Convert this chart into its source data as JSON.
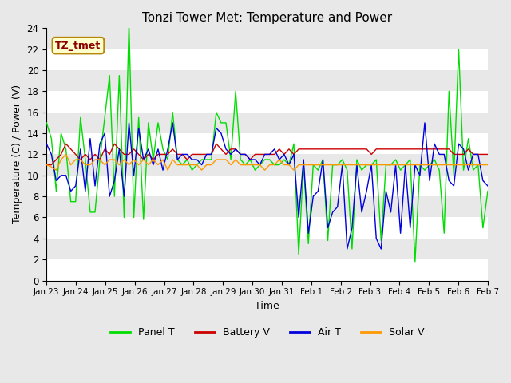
{
  "title": "Tonzi Tower Met: Temperature and Power",
  "xlabel": "Time",
  "ylabel": "Temperature (C) / Power (V)",
  "ylim": [
    0,
    24
  ],
  "yticks": [
    0,
    2,
    4,
    6,
    8,
    10,
    12,
    14,
    16,
    18,
    20,
    22,
    24
  ],
  "bg_light": "#e8e8e8",
  "bg_dark": "#d0d0d0",
  "annotation_text": "TZ_tmet",
  "annotation_color": "#8B0000",
  "annotation_bg": "#ffffcc",
  "annotation_border": "#b8860b",
  "legend_entries": [
    "Panel T",
    "Battery V",
    "Air T",
    "Solar V"
  ],
  "legend_colors": [
    "#00dd00",
    "#cc0000",
    "#0000dd",
    "#ff9900"
  ],
  "x_tick_labels": [
    "Jan 23",
    "Jan 24",
    "Jan 25",
    "Jan 26",
    "Jan 27",
    "Jan 28",
    "Jan 29",
    "Jan 30",
    "Jan 31",
    "Feb 1",
    "Feb 2",
    "Feb 3",
    "Feb 4",
    "Feb 5",
    "Feb 6",
    "Feb 7"
  ],
  "panel_t": [
    15.0,
    13.5,
    8.5,
    14.0,
    12.5,
    7.5,
    7.5,
    15.5,
    11.5,
    6.5,
    6.5,
    11.5,
    15.5,
    19.5,
    8.0,
    19.5,
    6.0,
    24.5,
    6.0,
    15.5,
    5.8,
    15.0,
    11.5,
    15.0,
    12.5,
    11.5,
    16.0,
    11.5,
    11.0,
    11.5,
    10.5,
    11.0,
    11.5,
    11.5,
    11.5,
    16.0,
    15.0,
    15.0,
    11.5,
    18.0,
    11.5,
    11.0,
    11.5,
    10.5,
    11.0,
    11.5,
    11.5,
    11.0,
    11.0,
    11.5,
    11.0,
    13.0,
    2.5,
    11.0,
    3.5,
    11.0,
    10.5,
    11.5,
    3.8,
    11.0,
    11.0,
    11.5,
    10.5,
    3.0,
    11.5,
    10.5,
    11.0,
    11.0,
    11.5,
    3.8,
    11.0,
    11.0,
    11.5,
    10.5,
    11.0,
    11.5,
    1.8,
    11.0,
    10.5,
    11.0,
    11.5,
    10.5,
    4.5,
    18.0,
    10.0,
    22.0,
    10.5,
    13.5,
    10.5,
    11.0,
    5.0,
    8.5
  ],
  "battery_v": [
    11.0,
    11.0,
    11.5,
    12.0,
    13.0,
    12.5,
    12.0,
    11.5,
    12.0,
    11.5,
    12.0,
    11.5,
    12.5,
    12.0,
    13.0,
    12.5,
    12.0,
    12.0,
    12.5,
    12.0,
    11.5,
    12.0,
    11.5,
    12.0,
    12.0,
    12.0,
    12.5,
    12.0,
    12.0,
    11.5,
    12.0,
    12.0,
    12.0,
    12.0,
    12.0,
    13.0,
    12.5,
    12.0,
    12.5,
    12.5,
    12.0,
    12.0,
    11.5,
    12.0,
    12.0,
    12.0,
    12.0,
    12.0,
    12.5,
    12.0,
    12.5,
    12.0,
    12.5,
    12.5,
    12.5,
    12.5,
    12.5,
    12.5,
    12.5,
    12.5,
    12.5,
    12.5,
    12.5,
    12.5,
    12.5,
    12.5,
    12.5,
    12.0,
    12.5,
    12.5,
    12.5,
    12.5,
    12.5,
    12.5,
    12.5,
    12.5,
    12.5,
    12.5,
    12.5,
    12.5,
    12.5,
    12.5,
    12.5,
    12.5,
    12.0,
    12.0,
    12.0,
    12.5,
    12.0,
    12.0,
    12.0,
    12.0
  ],
  "air_t": [
    13.0,
    12.0,
    9.5,
    10.0,
    10.0,
    8.5,
    9.0,
    12.5,
    8.5,
    13.5,
    9.0,
    13.0,
    14.0,
    8.0,
    9.5,
    12.5,
    8.0,
    15.0,
    10.0,
    14.5,
    11.5,
    12.5,
    11.0,
    12.5,
    10.5,
    12.5,
    15.0,
    11.5,
    12.0,
    12.0,
    11.5,
    11.5,
    11.0,
    12.0,
    12.0,
    14.5,
    14.0,
    12.5,
    12.0,
    12.5,
    12.0,
    12.0,
    11.5,
    11.5,
    11.0,
    12.0,
    12.0,
    12.5,
    11.5,
    12.0,
    11.0,
    12.0,
    6.0,
    11.5,
    4.5,
    8.0,
    8.5,
    11.5,
    5.0,
    6.5,
    7.0,
    11.0,
    3.0,
    5.0,
    11.0,
    6.5,
    8.5,
    11.0,
    4.0,
    3.0,
    8.5,
    6.5,
    11.0,
    4.5,
    11.0,
    5.0,
    11.0,
    10.0,
    15.0,
    9.5,
    13.0,
    12.0,
    12.0,
    9.5,
    9.0,
    13.0,
    12.5,
    10.5,
    12.0,
    12.0,
    9.5,
    9.0
  ],
  "solar_v": [
    11.0,
    10.8,
    10.5,
    11.5,
    12.0,
    11.0,
    11.5,
    11.5,
    11.0,
    11.0,
    11.5,
    11.5,
    11.0,
    11.5,
    11.5,
    11.0,
    11.5,
    11.0,
    11.5,
    11.0,
    11.5,
    11.0,
    11.5,
    11.0,
    11.5,
    10.5,
    11.5,
    11.0,
    11.0,
    11.0,
    11.0,
    11.0,
    10.5,
    11.0,
    11.0,
    11.5,
    11.5,
    11.5,
    11.0,
    11.5,
    11.0,
    11.0,
    11.0,
    11.0,
    11.0,
    10.5,
    11.0,
    11.0,
    11.5,
    11.0,
    11.0,
    10.5,
    11.0,
    11.0,
    11.0,
    11.0,
    11.0,
    11.0,
    11.0,
    11.0,
    11.0,
    11.0,
    11.0,
    11.0,
    11.0,
    11.0,
    11.0,
    11.0,
    11.0,
    11.0,
    11.0,
    11.0,
    11.0,
    11.0,
    11.0,
    11.0,
    11.0,
    11.0,
    11.0,
    11.0,
    11.0,
    11.0,
    11.0,
    11.0,
    11.0,
    11.0,
    11.0,
    11.0,
    11.0,
    11.0,
    11.0,
    11.0
  ]
}
